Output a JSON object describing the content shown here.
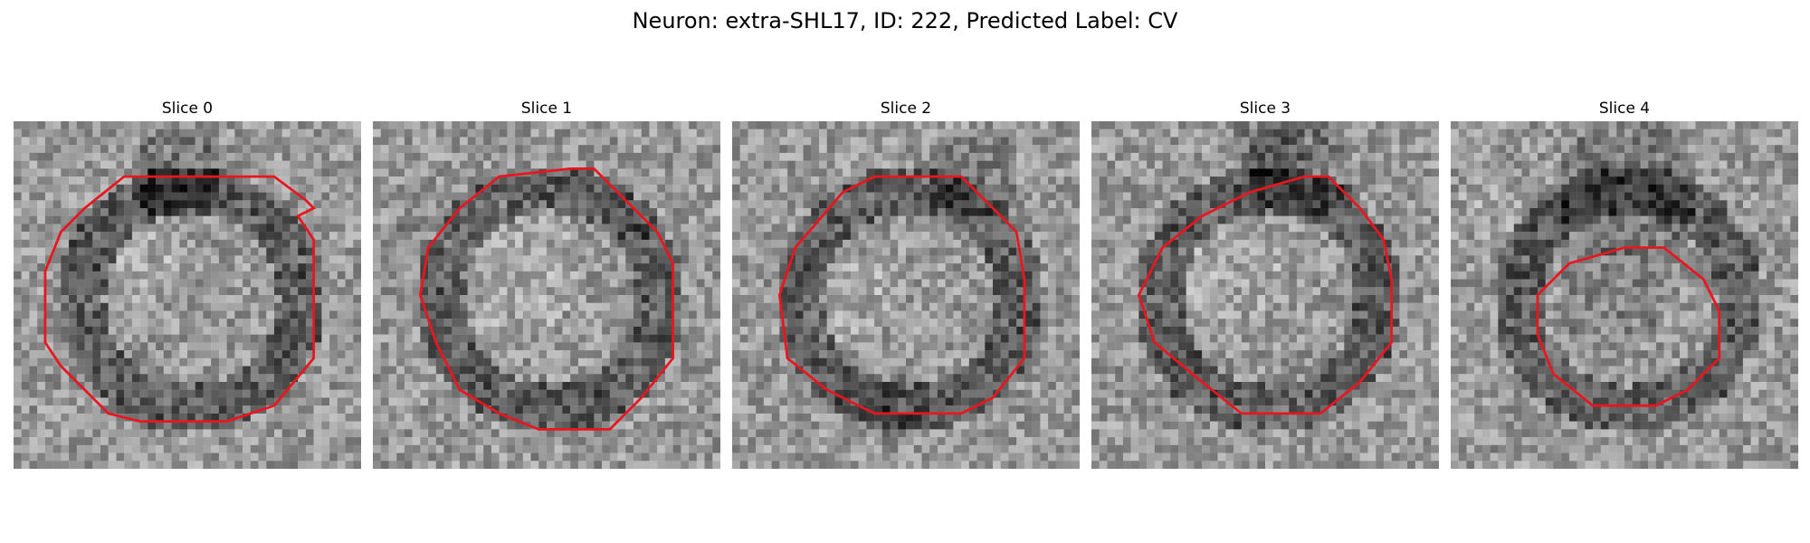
{
  "title": "Neuron: extra-SHL17, ID: 222, Predicted Label: CV",
  "contour_color": "#e8171f",
  "slices": [
    {
      "label": "Slice 0",
      "seed": 11,
      "dark_cells": [
        [
          20,
          6,
          6,
          36
        ],
        [
          18,
          8,
          4,
          24
        ]
      ],
      "bright_cells": [
        [
          16,
          18,
          5,
          18
        ]
      ],
      "contour": [
        [
          38,
          11
        ],
        [
          37,
          10
        ],
        [
          33,
          7
        ],
        [
          14,
          7
        ],
        [
          9,
          11
        ],
        [
          6,
          14
        ],
        [
          4,
          19
        ],
        [
          4,
          28
        ],
        [
          6,
          31
        ],
        [
          12,
          37
        ],
        [
          16,
          38
        ],
        [
          27,
          38
        ],
        [
          33,
          36
        ],
        [
          38,
          30
        ],
        [
          38,
          15
        ],
        [
          36,
          12
        ]
      ]
    },
    {
      "label": "Slice 1",
      "seed": 23,
      "dark_cells": [
        [
          5,
          14,
          3,
          16
        ],
        [
          33,
          12,
          3,
          14
        ]
      ],
      "bright_cells": [
        [
          17,
          18,
          9,
          16
        ]
      ],
      "contour": [
        [
          25,
          6
        ],
        [
          28,
          6
        ],
        [
          33,
          11
        ],
        [
          36,
          14
        ],
        [
          38,
          18
        ],
        [
          38,
          30
        ],
        [
          34,
          35
        ],
        [
          30,
          39
        ],
        [
          21,
          39
        ],
        [
          16,
          37
        ],
        [
          11,
          34
        ],
        [
          8,
          28
        ],
        [
          6,
          22
        ],
        [
          7,
          16
        ],
        [
          11,
          11
        ],
        [
          16,
          7
        ]
      ]
    },
    {
      "label": "Slice 2",
      "seed": 37,
      "dark_cells": [
        [
          30,
          6,
          6,
          30
        ],
        [
          20,
          36,
          5,
          20
        ]
      ],
      "bright_cells": [
        [
          14,
          22,
          6,
          18
        ]
      ],
      "contour": [
        [
          25,
          7
        ],
        [
          29,
          7
        ],
        [
          33,
          11
        ],
        [
          36,
          14
        ],
        [
          37,
          20
        ],
        [
          37,
          30
        ],
        [
          33,
          35
        ],
        [
          29,
          37
        ],
        [
          18,
          37
        ],
        [
          12,
          34
        ],
        [
          7,
          30
        ],
        [
          6,
          22
        ],
        [
          8,
          16
        ],
        [
          14,
          9
        ],
        [
          18,
          7
        ]
      ]
    },
    {
      "label": "Slice 3",
      "seed": 53,
      "dark_cells": [
        [
          26,
          5,
          7,
          40
        ],
        [
          22,
          2,
          5,
          30
        ]
      ],
      "bright_cells": [
        [
          17,
          18,
          7,
          16
        ]
      ],
      "contour": [
        [
          27,
          7
        ],
        [
          30,
          7
        ],
        [
          34,
          11
        ],
        [
          37,
          15
        ],
        [
          38,
          20
        ],
        [
          38,
          28
        ],
        [
          34,
          33
        ],
        [
          29,
          37
        ],
        [
          19,
          37
        ],
        [
          14,
          33
        ],
        [
          8,
          28
        ],
        [
          6,
          22
        ],
        [
          9,
          16
        ],
        [
          14,
          12
        ],
        [
          20,
          9
        ]
      ]
    },
    {
      "label": "Slice 4",
      "seed": 71,
      "dark_cells": [
        [
          22,
          8,
          9,
          36
        ],
        [
          20,
          22,
          7,
          24
        ]
      ],
      "bright_cells": [
        [
          5,
          10,
          5,
          10
        ]
      ],
      "contour": [
        [
          22,
          16
        ],
        [
          27,
          16
        ],
        [
          32,
          20
        ],
        [
          34,
          24
        ],
        [
          34,
          30
        ],
        [
          30,
          34
        ],
        [
          26,
          36
        ],
        [
          18,
          36
        ],
        [
          13,
          32
        ],
        [
          11,
          27
        ],
        [
          11,
          22
        ],
        [
          15,
          18
        ]
      ]
    }
  ]
}
